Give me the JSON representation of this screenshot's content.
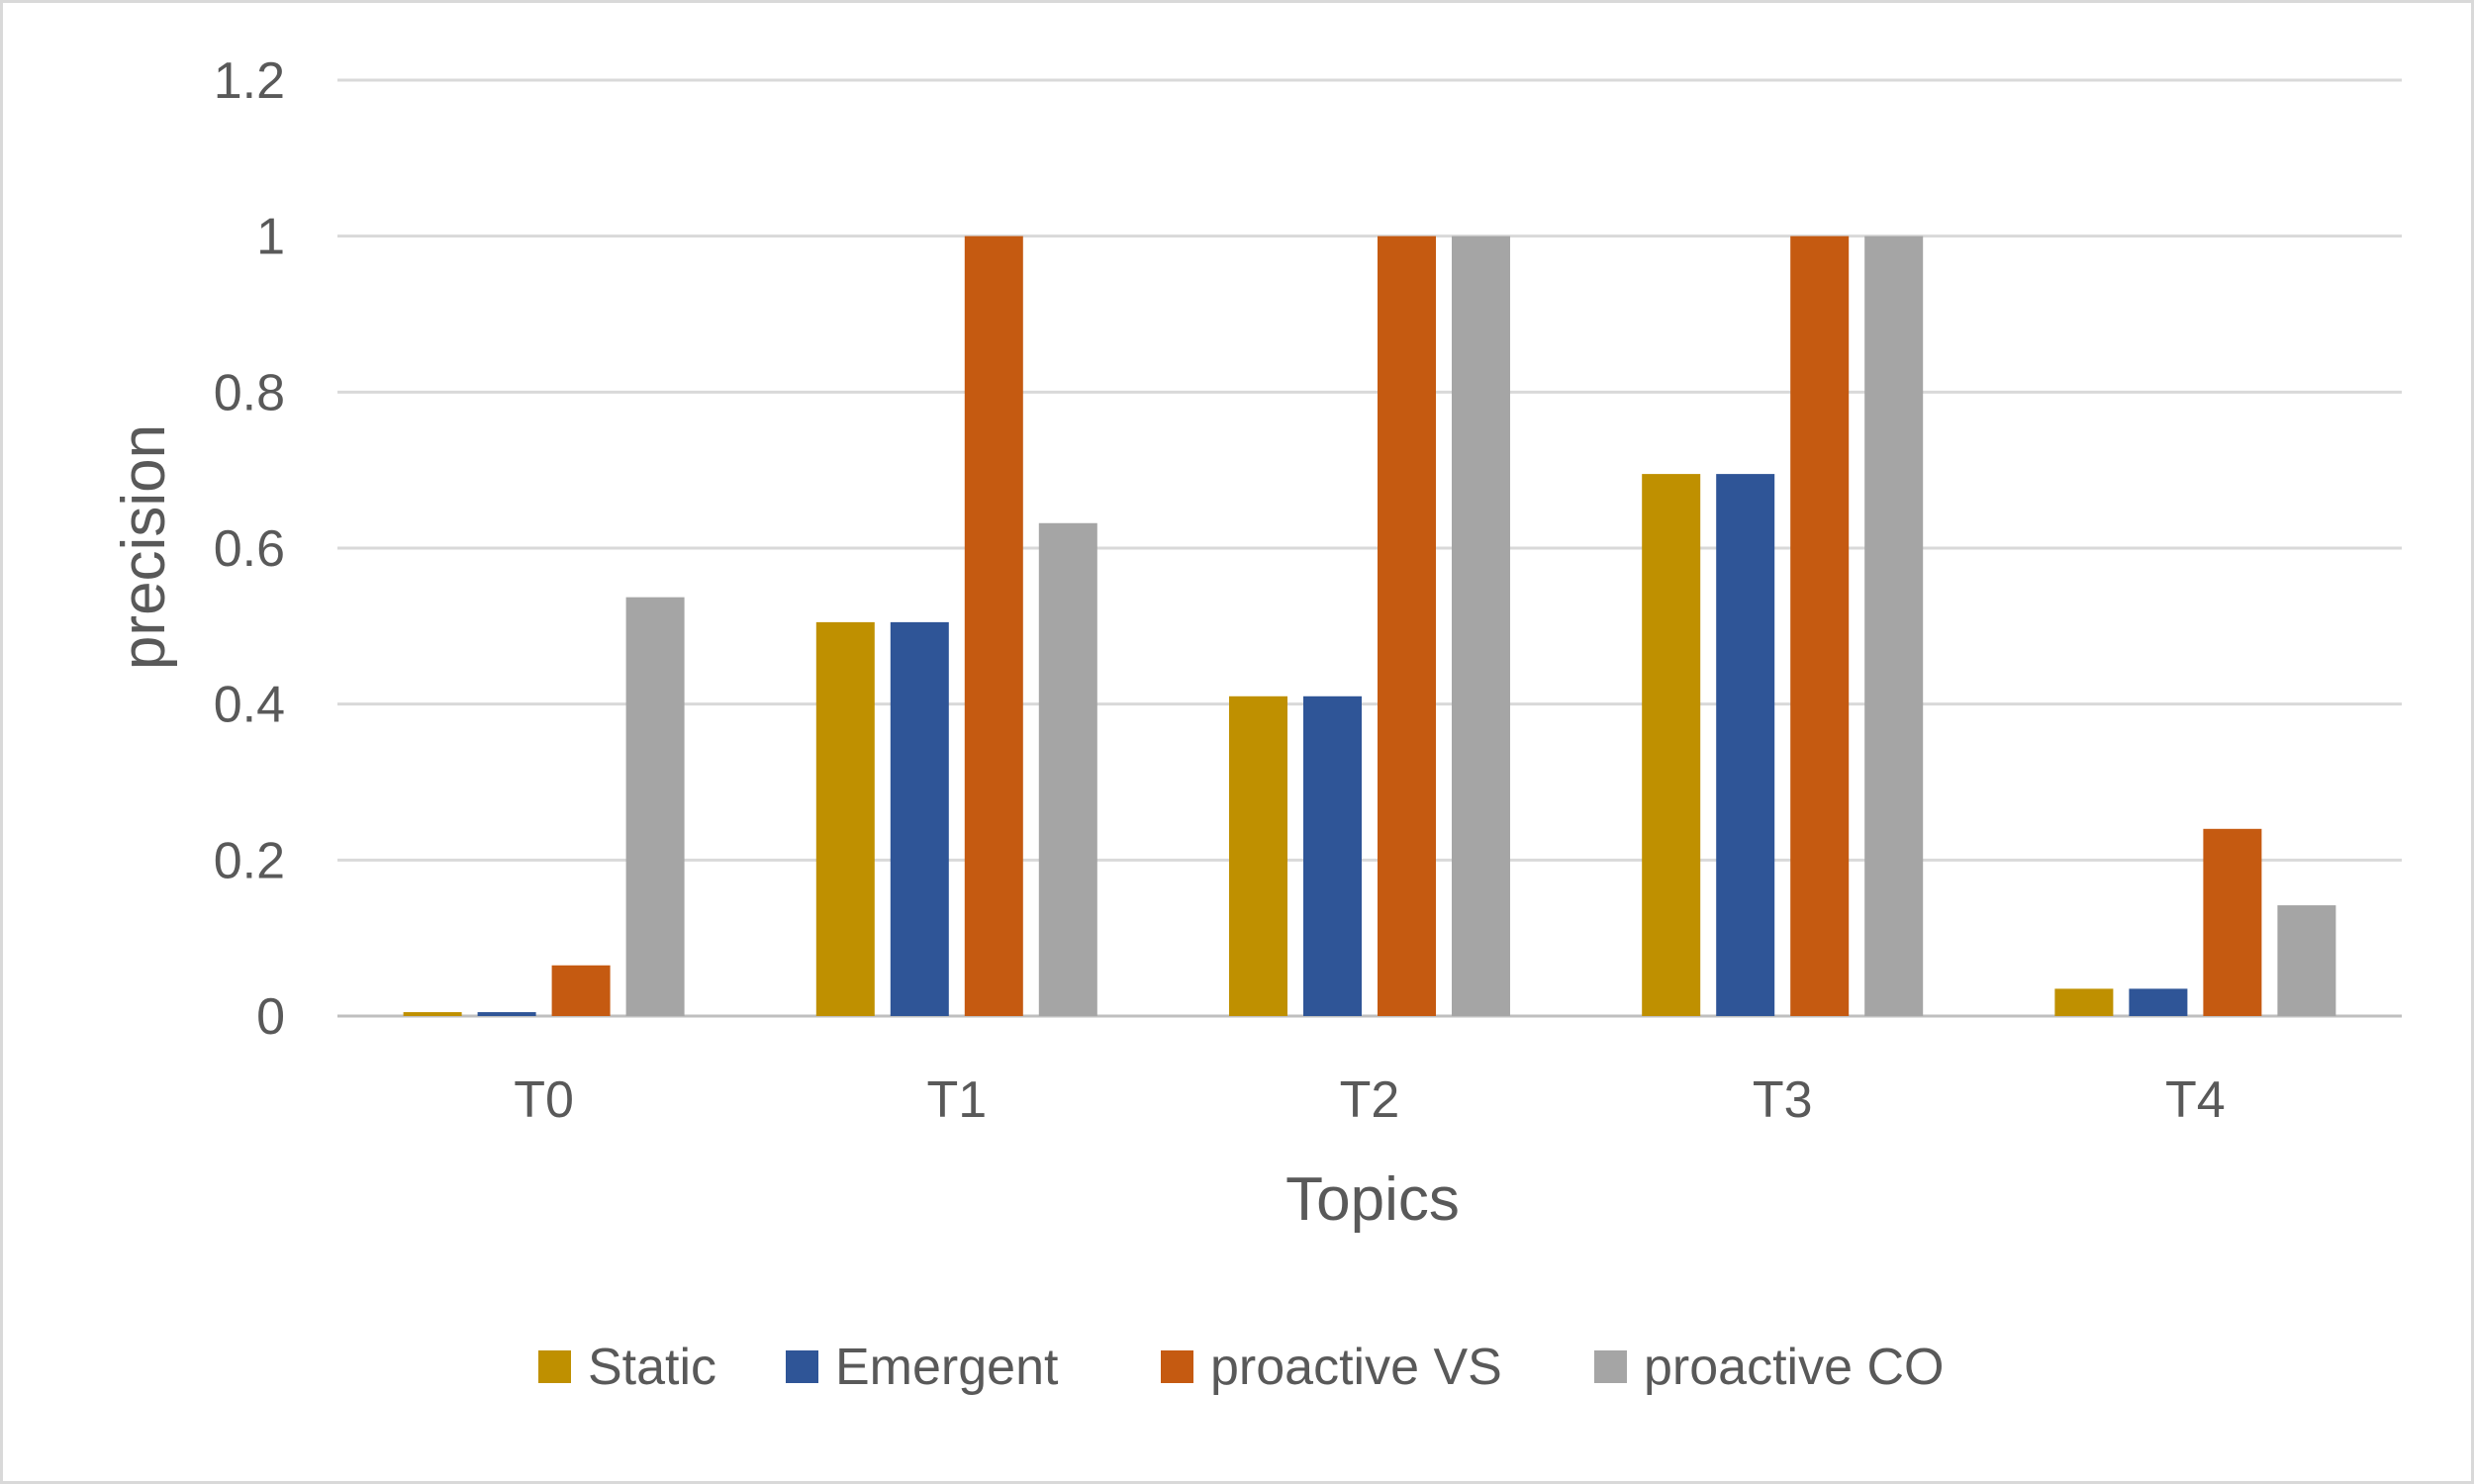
{
  "chart_data": {
    "type": "bar",
    "title": "",
    "xlabel": "Topics",
    "ylabel": "precision",
    "categories": [
      "T0",
      "T1",
      "T2",
      "T3",
      "T4"
    ],
    "ylim": [
      0,
      1.2
    ],
    "yticks": [
      0,
      0.2,
      0.4,
      0.6,
      0.8,
      1,
      1.2
    ],
    "ytick_labels": [
      "0",
      "0.2",
      "0.4",
      "0.6",
      "0.8",
      "1",
      "1.2"
    ],
    "grid": true,
    "legend_position": "bottom",
    "series": [
      {
        "name": "Static",
        "color": "#bf9000",
        "values": [
          0.005,
          0.505,
          0.41,
          0.695,
          0.035
        ]
      },
      {
        "name": "Emergent",
        "color": "#2f5597",
        "values": [
          0.005,
          0.505,
          0.41,
          0.695,
          0.035
        ]
      },
      {
        "name": "proactive VS",
        "color": "#c55a11",
        "values": [
          0.065,
          1.0,
          1.0,
          1.0,
          0.24
        ]
      },
      {
        "name": "proactive CO",
        "color": "#a5a5a5",
        "values": [
          0.537,
          0.632,
          1.0,
          1.0,
          0.142
        ]
      }
    ]
  }
}
